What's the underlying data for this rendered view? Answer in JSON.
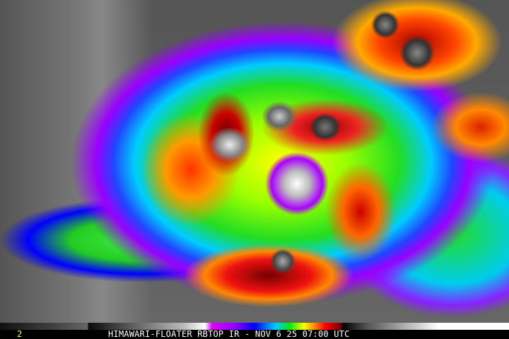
{
  "frame_number": "2",
  "caption": "HIMAWARI-FLOATER RBTOP IR - NOV 6 25 07:00 UTC",
  "colorbar_colors": [
    "#111111",
    "#666666",
    "#ffffff",
    "#9900ff",
    "#0000ff",
    "#00ccff",
    "#00ee00",
    "#ffff00",
    "#ff8800",
    "#ff0000",
    "#770000",
    "#000000",
    "#ffffff"
  ]
}
